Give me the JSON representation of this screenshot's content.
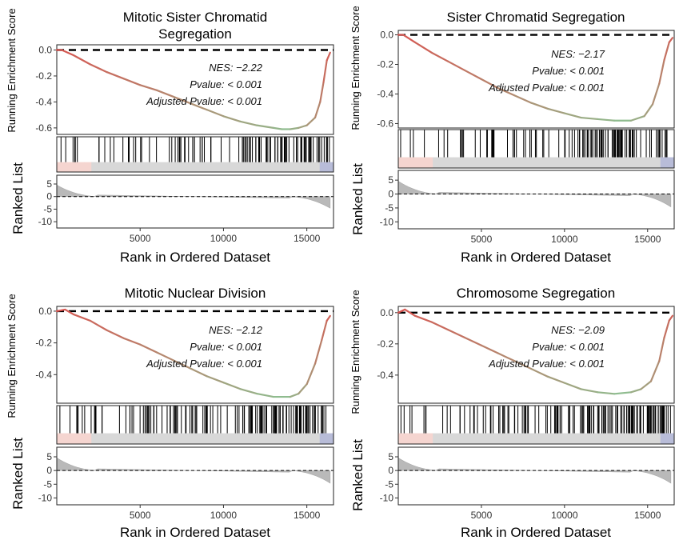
{
  "chart_data": [
    {
      "type": "line",
      "title": "Mitotic Sister Chromatid\nSegregation",
      "ylabel": "Running Enrichment Score",
      "ylabel2": "Ranked List",
      "xlabel": "Rank in Ordered Dataset",
      "annotations": [
        "NES: −2.22",
        "Pvalue: < 0.001",
        "Adjusted Pvalue: < 0.001"
      ],
      "es_ylim": [
        -0.65,
        0.04
      ],
      "es_yticks": [
        "0.0",
        "-0.2",
        "-0.4",
        "-0.6"
      ],
      "xlim": [
        0,
        16600
      ],
      "xticks": [
        "5000",
        "10000",
        "15000"
      ],
      "rank_ylim": [
        -12.5,
        8.5
      ],
      "rank_yticks": [
        "5",
        "0",
        "-5",
        "-10"
      ],
      "es_curve": {
        "x": [
          0,
          300,
          1000,
          2000,
          3000,
          4000,
          5000,
          6000,
          7000,
          8000,
          9000,
          10000,
          11000,
          12000,
          13000,
          13500,
          14000,
          14500,
          15000,
          15500,
          15800,
          16000,
          16200,
          16400
        ],
        "y": [
          0.0,
          0.0,
          -0.04,
          -0.11,
          -0.17,
          -0.22,
          -0.27,
          -0.31,
          -0.36,
          -0.41,
          -0.46,
          -0.51,
          -0.55,
          -0.58,
          -0.6,
          -0.61,
          -0.61,
          -0.6,
          -0.58,
          -0.52,
          -0.4,
          -0.25,
          -0.08,
          -0.02
        ]
      },
      "hit_ranges": [
        [
          0,
          2200
        ],
        [
          2200,
          6500
        ],
        [
          6500,
          11500
        ],
        [
          11500,
          16400
        ]
      ],
      "hit_counts": [
        6,
        14,
        28,
        60
      ],
      "colors": {
        "start": "#d9534f",
        "mid": "#8fbc8f",
        "heatmap_low": "#f5d5d0",
        "heatmap_high": "#b8bcd8"
      }
    },
    {
      "type": "line",
      "title": "Sister Chromatid Segregation",
      "ylabel": "Running Enrichment Score",
      "ylabel2": "Ranked List",
      "xlabel": "Rank in Ordered Dataset",
      "annotations": [
        "NES: −2.17",
        "Pvalue: < 0.001",
        "Adjusted Pvalue: < 0.001"
      ],
      "es_ylim": [
        -0.63,
        0.03
      ],
      "es_yticks": [
        "0.0",
        "-0.2",
        "-0.4",
        "-0.6"
      ],
      "xlim": [
        0,
        16600
      ],
      "xticks": [
        "5000",
        "10000",
        "15000"
      ],
      "rank_ylim": [
        -12.5,
        8.5
      ],
      "rank_yticks": [
        "5",
        "0",
        "-5",
        "-10"
      ],
      "es_curve": {
        "x": [
          0,
          300,
          1000,
          2000,
          3000,
          4000,
          5000,
          6000,
          7000,
          8000,
          9000,
          10000,
          11000,
          12000,
          13000,
          14000,
          14800,
          15300,
          15700,
          16000,
          16300,
          16500
        ],
        "y": [
          0.0,
          0.0,
          -0.05,
          -0.12,
          -0.18,
          -0.24,
          -0.3,
          -0.36,
          -0.41,
          -0.46,
          -0.5,
          -0.53,
          -0.56,
          -0.57,
          -0.58,
          -0.58,
          -0.55,
          -0.47,
          -0.33,
          -0.17,
          -0.05,
          -0.02
        ]
      },
      "hit_ranges": [
        [
          0,
          2200
        ],
        [
          2200,
          6500
        ],
        [
          6500,
          11500
        ],
        [
          11500,
          16400
        ]
      ],
      "hit_counts": [
        4,
        16,
        30,
        58
      ],
      "colors": {
        "start": "#d9534f",
        "mid": "#8fbc8f",
        "heatmap_low": "#f5d5d0",
        "heatmap_high": "#b8bcd8"
      }
    },
    {
      "type": "line",
      "title": "Mitotic Nuclear Division",
      "ylabel": "Running Enrichment Score",
      "ylabel2": "Ranked List",
      "xlabel": "Rank in Ordered Dataset",
      "annotations": [
        "NES: −2.12",
        "Pvalue: < 0.001",
        "Adjusted Pvalue: < 0.001"
      ],
      "es_ylim": [
        -0.58,
        0.03
      ],
      "es_yticks": [
        "0.0",
        "-0.2",
        "-0.4"
      ],
      "xlim": [
        0,
        16600
      ],
      "xticks": [
        "5000",
        "10000",
        "15000"
      ],
      "rank_ylim": [
        -12.5,
        8.5
      ],
      "rank_yticks": [
        "5",
        "0",
        "-5",
        "-10"
      ],
      "es_curve": {
        "x": [
          0,
          500,
          1000,
          2000,
          3000,
          4000,
          5000,
          6000,
          7000,
          8000,
          9000,
          10000,
          11000,
          12000,
          13000,
          14000,
          14500,
          15000,
          15500,
          15900,
          16200,
          16400
        ],
        "y": [
          0.0,
          0.01,
          -0.02,
          -0.06,
          -0.12,
          -0.17,
          -0.21,
          -0.26,
          -0.31,
          -0.36,
          -0.41,
          -0.45,
          -0.49,
          -0.52,
          -0.54,
          -0.54,
          -0.52,
          -0.46,
          -0.33,
          -0.18,
          -0.06,
          -0.03
        ]
      },
      "hit_ranges": [
        [
          0,
          2200
        ],
        [
          2200,
          5000
        ],
        [
          5000,
          11500
        ],
        [
          11500,
          16400
        ]
      ],
      "hit_counts": [
        8,
        12,
        48,
        70
      ],
      "colors": {
        "start": "#d9534f",
        "mid": "#8fbc8f",
        "heatmap_low": "#f5d5d0",
        "heatmap_high": "#b8bcd8"
      }
    },
    {
      "type": "line",
      "title": "Chromosome Segregation",
      "ylabel": "Running Enrichment Score",
      "ylabel2": "Ranked List",
      "xlabel": "Rank in Ordered Dataset",
      "annotations": [
        "NES: −2.09",
        "Pvalue: < 0.001",
        "Adjusted Pvalue: < 0.001"
      ],
      "es_ylim": [
        -0.58,
        0.04
      ],
      "es_yticks": [
        "0.0",
        "-0.2",
        "-0.4"
      ],
      "xlim": [
        0,
        16600
      ],
      "xticks": [
        "5000",
        "10000",
        "15000"
      ],
      "rank_ylim": [
        -12.5,
        8.5
      ],
      "rank_yticks": [
        "5",
        "0",
        "-5",
        "-10"
      ],
      "es_curve": {
        "x": [
          0,
          400,
          1000,
          2000,
          3000,
          4000,
          5000,
          6000,
          7000,
          8000,
          9000,
          10000,
          11000,
          12000,
          13000,
          14000,
          14600,
          15200,
          15700,
          16000,
          16300,
          16500
        ],
        "y": [
          0.0,
          0.02,
          -0.02,
          -0.06,
          -0.11,
          -0.16,
          -0.21,
          -0.26,
          -0.31,
          -0.36,
          -0.41,
          -0.45,
          -0.49,
          -0.51,
          -0.52,
          -0.51,
          -0.49,
          -0.44,
          -0.31,
          -0.16,
          -0.05,
          -0.02
        ]
      },
      "hit_ranges": [
        [
          0,
          2200
        ],
        [
          2200,
          5000
        ],
        [
          5000,
          11500
        ],
        [
          11500,
          16400
        ]
      ],
      "hit_counts": [
        8,
        10,
        52,
        75
      ],
      "colors": {
        "start": "#d9534f",
        "mid": "#8fbc8f",
        "heatmap_low": "#f5d5d0",
        "heatmap_high": "#b8bcd8"
      }
    }
  ]
}
